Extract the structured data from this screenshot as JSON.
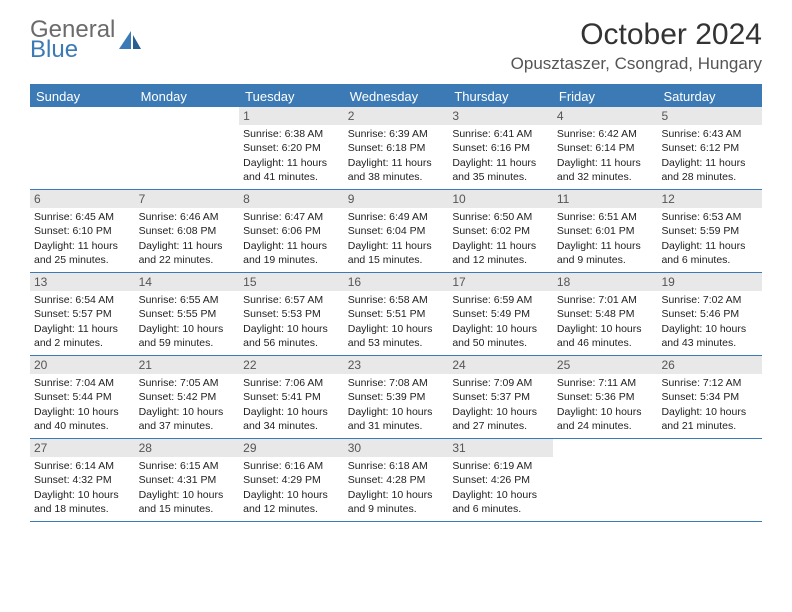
{
  "logo": {
    "general": "General",
    "blue": "Blue"
  },
  "title": "October 2024",
  "location": "Opusztaszer, Csongrad, Hungary",
  "colors": {
    "brand": "#3b7ab5",
    "logoGray": "#6b6b6b",
    "dayNumBg": "#e8e8e8",
    "text": "#222222"
  },
  "dow": [
    "Sunday",
    "Monday",
    "Tuesday",
    "Wednesday",
    "Thursday",
    "Friday",
    "Saturday"
  ],
  "weeks": [
    [
      null,
      null,
      {
        "n": "1",
        "sr": "Sunrise: 6:38 AM",
        "ss": "Sunset: 6:20 PM",
        "d1": "Daylight: 11 hours",
        "d2": "and 41 minutes."
      },
      {
        "n": "2",
        "sr": "Sunrise: 6:39 AM",
        "ss": "Sunset: 6:18 PM",
        "d1": "Daylight: 11 hours",
        "d2": "and 38 minutes."
      },
      {
        "n": "3",
        "sr": "Sunrise: 6:41 AM",
        "ss": "Sunset: 6:16 PM",
        "d1": "Daylight: 11 hours",
        "d2": "and 35 minutes."
      },
      {
        "n": "4",
        "sr": "Sunrise: 6:42 AM",
        "ss": "Sunset: 6:14 PM",
        "d1": "Daylight: 11 hours",
        "d2": "and 32 minutes."
      },
      {
        "n": "5",
        "sr": "Sunrise: 6:43 AM",
        "ss": "Sunset: 6:12 PM",
        "d1": "Daylight: 11 hours",
        "d2": "and 28 minutes."
      }
    ],
    [
      {
        "n": "6",
        "sr": "Sunrise: 6:45 AM",
        "ss": "Sunset: 6:10 PM",
        "d1": "Daylight: 11 hours",
        "d2": "and 25 minutes."
      },
      {
        "n": "7",
        "sr": "Sunrise: 6:46 AM",
        "ss": "Sunset: 6:08 PM",
        "d1": "Daylight: 11 hours",
        "d2": "and 22 minutes."
      },
      {
        "n": "8",
        "sr": "Sunrise: 6:47 AM",
        "ss": "Sunset: 6:06 PM",
        "d1": "Daylight: 11 hours",
        "d2": "and 19 minutes."
      },
      {
        "n": "9",
        "sr": "Sunrise: 6:49 AM",
        "ss": "Sunset: 6:04 PM",
        "d1": "Daylight: 11 hours",
        "d2": "and 15 minutes."
      },
      {
        "n": "10",
        "sr": "Sunrise: 6:50 AM",
        "ss": "Sunset: 6:02 PM",
        "d1": "Daylight: 11 hours",
        "d2": "and 12 minutes."
      },
      {
        "n": "11",
        "sr": "Sunrise: 6:51 AM",
        "ss": "Sunset: 6:01 PM",
        "d1": "Daylight: 11 hours",
        "d2": "and 9 minutes."
      },
      {
        "n": "12",
        "sr": "Sunrise: 6:53 AM",
        "ss": "Sunset: 5:59 PM",
        "d1": "Daylight: 11 hours",
        "d2": "and 6 minutes."
      }
    ],
    [
      {
        "n": "13",
        "sr": "Sunrise: 6:54 AM",
        "ss": "Sunset: 5:57 PM",
        "d1": "Daylight: 11 hours",
        "d2": "and 2 minutes."
      },
      {
        "n": "14",
        "sr": "Sunrise: 6:55 AM",
        "ss": "Sunset: 5:55 PM",
        "d1": "Daylight: 10 hours",
        "d2": "and 59 minutes."
      },
      {
        "n": "15",
        "sr": "Sunrise: 6:57 AM",
        "ss": "Sunset: 5:53 PM",
        "d1": "Daylight: 10 hours",
        "d2": "and 56 minutes."
      },
      {
        "n": "16",
        "sr": "Sunrise: 6:58 AM",
        "ss": "Sunset: 5:51 PM",
        "d1": "Daylight: 10 hours",
        "d2": "and 53 minutes."
      },
      {
        "n": "17",
        "sr": "Sunrise: 6:59 AM",
        "ss": "Sunset: 5:49 PM",
        "d1": "Daylight: 10 hours",
        "d2": "and 50 minutes."
      },
      {
        "n": "18",
        "sr": "Sunrise: 7:01 AM",
        "ss": "Sunset: 5:48 PM",
        "d1": "Daylight: 10 hours",
        "d2": "and 46 minutes."
      },
      {
        "n": "19",
        "sr": "Sunrise: 7:02 AM",
        "ss": "Sunset: 5:46 PM",
        "d1": "Daylight: 10 hours",
        "d2": "and 43 minutes."
      }
    ],
    [
      {
        "n": "20",
        "sr": "Sunrise: 7:04 AM",
        "ss": "Sunset: 5:44 PM",
        "d1": "Daylight: 10 hours",
        "d2": "and 40 minutes."
      },
      {
        "n": "21",
        "sr": "Sunrise: 7:05 AM",
        "ss": "Sunset: 5:42 PM",
        "d1": "Daylight: 10 hours",
        "d2": "and 37 minutes."
      },
      {
        "n": "22",
        "sr": "Sunrise: 7:06 AM",
        "ss": "Sunset: 5:41 PM",
        "d1": "Daylight: 10 hours",
        "d2": "and 34 minutes."
      },
      {
        "n": "23",
        "sr": "Sunrise: 7:08 AM",
        "ss": "Sunset: 5:39 PM",
        "d1": "Daylight: 10 hours",
        "d2": "and 31 minutes."
      },
      {
        "n": "24",
        "sr": "Sunrise: 7:09 AM",
        "ss": "Sunset: 5:37 PM",
        "d1": "Daylight: 10 hours",
        "d2": "and 27 minutes."
      },
      {
        "n": "25",
        "sr": "Sunrise: 7:11 AM",
        "ss": "Sunset: 5:36 PM",
        "d1": "Daylight: 10 hours",
        "d2": "and 24 minutes."
      },
      {
        "n": "26",
        "sr": "Sunrise: 7:12 AM",
        "ss": "Sunset: 5:34 PM",
        "d1": "Daylight: 10 hours",
        "d2": "and 21 minutes."
      }
    ],
    [
      {
        "n": "27",
        "sr": "Sunrise: 6:14 AM",
        "ss": "Sunset: 4:32 PM",
        "d1": "Daylight: 10 hours",
        "d2": "and 18 minutes."
      },
      {
        "n": "28",
        "sr": "Sunrise: 6:15 AM",
        "ss": "Sunset: 4:31 PM",
        "d1": "Daylight: 10 hours",
        "d2": "and 15 minutes."
      },
      {
        "n": "29",
        "sr": "Sunrise: 6:16 AM",
        "ss": "Sunset: 4:29 PM",
        "d1": "Daylight: 10 hours",
        "d2": "and 12 minutes."
      },
      {
        "n": "30",
        "sr": "Sunrise: 6:18 AM",
        "ss": "Sunset: 4:28 PM",
        "d1": "Daylight: 10 hours",
        "d2": "and 9 minutes."
      },
      {
        "n": "31",
        "sr": "Sunrise: 6:19 AM",
        "ss": "Sunset: 4:26 PM",
        "d1": "Daylight: 10 hours",
        "d2": "and 6 minutes."
      },
      null,
      null
    ]
  ]
}
